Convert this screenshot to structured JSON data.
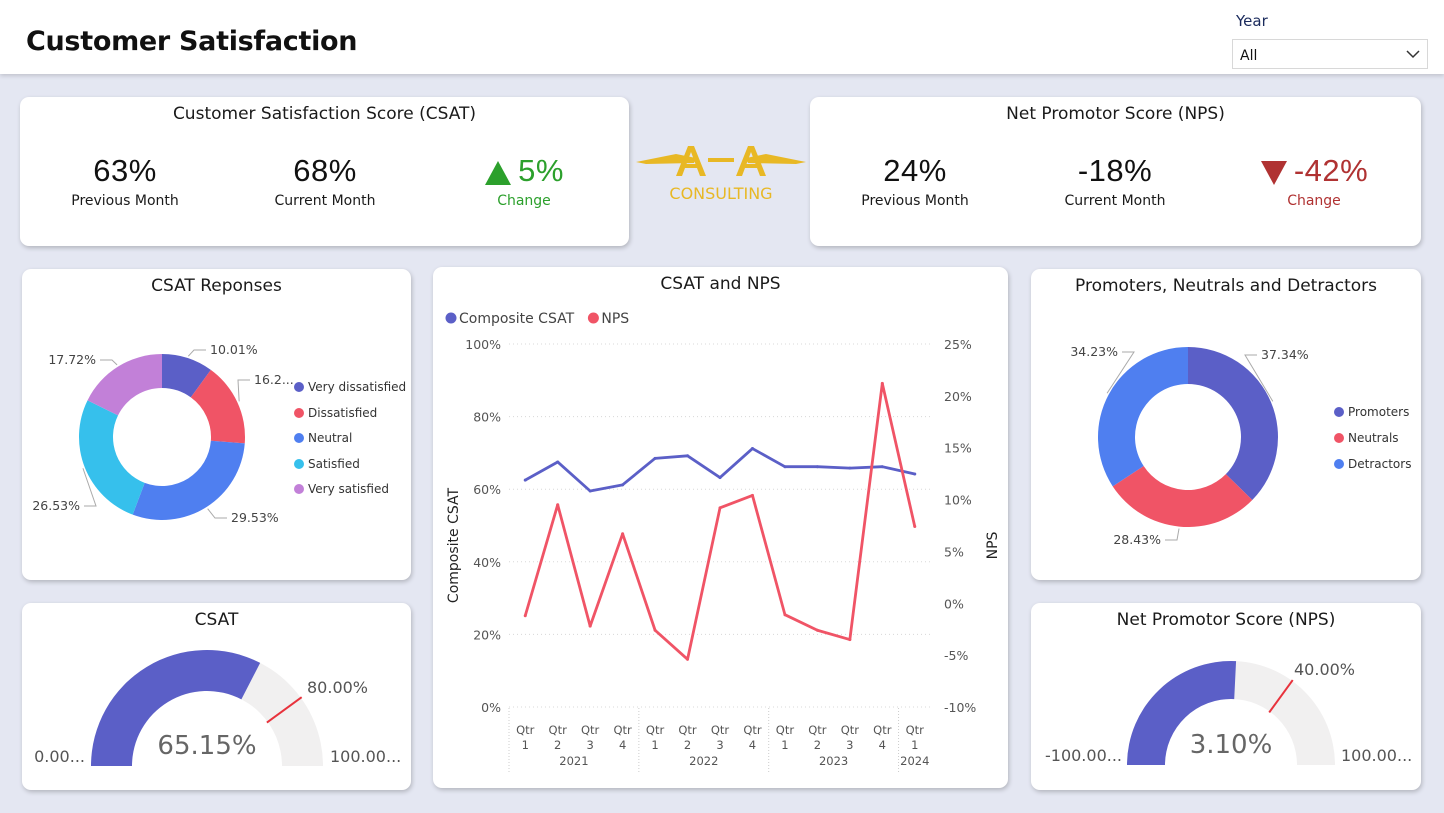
{
  "header": {
    "title": "Customer Satisfaction",
    "year_label": "Year",
    "year_value": "All"
  },
  "colors": {
    "very_dissatisfied": "#5b5fc7",
    "dissatisfied": "#f05466",
    "neutral": "#4f7ff0",
    "satisfied": "#36c0ec",
    "very_satisfied": "#c280d8",
    "positive": "#2ca02c",
    "negative": "#b03232",
    "logo": "#e8b825",
    "gauge_fill": "#5b5fc7",
    "gauge_track": "#f1f0f0",
    "gauge_target": "#e8323c"
  },
  "csat_kpi": {
    "title": "Customer Satisfaction Score (CSAT)",
    "prev_value": "63%",
    "prev_label": "Previous Month",
    "curr_value": "68%",
    "curr_label": "Current Month",
    "change_value": "5%",
    "change_label": "Change",
    "change_direction": "up"
  },
  "nps_kpi": {
    "title": "Net Promotor Score (NPS)",
    "prev_value": "24%",
    "prev_label": "Previous Month",
    "curr_value": "-18%",
    "curr_label": "Current Month",
    "change_value": "-42%",
    "change_label": "Change",
    "change_direction": "down"
  },
  "logo": {
    "mark": "A A",
    "text": "CONSULTING"
  },
  "chart_data": [
    {
      "type": "pie",
      "title": "CSAT Reponses",
      "categories": [
        "Very dissatisfied",
        "Dissatisfied",
        "Neutral",
        "Satisfied",
        "Very satisfied"
      ],
      "values": [
        10.01,
        16.2,
        29.53,
        26.53,
        17.72
      ],
      "labels": [
        "10.01%",
        "16.2...",
        "29.53%",
        "26.53%",
        "17.72%"
      ],
      "legend_position": "right"
    },
    {
      "type": "line",
      "title": "CSAT and NPS",
      "x": [
        "Qtr 1 2021",
        "Qtr 2 2021",
        "Qtr 3 2021",
        "Qtr 4 2021",
        "Qtr 1 2022",
        "Qtr 2 2022",
        "Qtr 3 2022",
        "Qtr 4 2022",
        "Qtr 1 2023",
        "Qtr 2 2023",
        "Qtr 3 2023",
        "Qtr 4 2023",
        "Qtr 1 2024"
      ],
      "x_tick_labels": [
        "Qtr",
        "Qtr",
        "Qtr",
        "Qtr",
        "Qtr",
        "Qtr",
        "Qtr",
        "Qtr",
        "Qtr",
        "Qtr",
        "Qtr",
        "Qtr",
        "Qtr"
      ],
      "x_tick_sub": [
        "1",
        "2",
        "3",
        "4",
        "1",
        "2",
        "3",
        "4",
        "1",
        "2",
        "3",
        "4",
        "1"
      ],
      "years": [
        "2021",
        "2022",
        "2023",
        "2024"
      ],
      "series": [
        {
          "name": "Composite CSAT",
          "axis": "left",
          "values": [
            62.5,
            67.5,
            59.5,
            61.2,
            68.5,
            69.2,
            63.2,
            71.2,
            66.2,
            66.2,
            65.8,
            66.2,
            64.2
          ]
        },
        {
          "name": "NPS",
          "axis": "right",
          "values": [
            -1.2,
            9.5,
            -2.2,
            6.7,
            -2.6,
            -5.4,
            9.2,
            10.4,
            -1.1,
            -2.6,
            -3.5,
            21.2,
            7.4
          ]
        }
      ],
      "ylabel": "Composite CSAT",
      "ylabel_right": "NPS",
      "ylim": [
        0,
        100
      ],
      "ylim_right": [
        -10,
        25
      ],
      "y_ticks": [
        "100%",
        "80%",
        "60%",
        "40%",
        "20%",
        "0%"
      ],
      "y_ticks_right": [
        "25%",
        "20%",
        "15%",
        "10%",
        "5%",
        "0%",
        "-5%",
        "-10%"
      ],
      "grid": true,
      "legend_position": "top-left"
    },
    {
      "type": "pie",
      "title": "Promoters, Neutrals and Detractors",
      "categories": [
        "Promoters",
        "Neutrals",
        "Detractors"
      ],
      "values": [
        37.34,
        28.43,
        34.23
      ],
      "labels": [
        "37.34%",
        "28.43%",
        "34.23%"
      ],
      "legend_position": "right"
    }
  ],
  "csat_gauge": {
    "title": "CSAT",
    "value": 65.15,
    "value_label": "65.15%",
    "min_label": "0.00...",
    "max_label": "100.00...",
    "target_label": "80.00%",
    "min": 0,
    "max": 100,
    "target": 80
  },
  "nps_gauge": {
    "title": "Net Promotor Score (NPS)",
    "value": 3.1,
    "value_label": "3.10%",
    "min_label": "-100.00...",
    "max_label": "100.00...",
    "target_label": "40.00%",
    "min": -100,
    "max": 100,
    "target": 40
  }
}
